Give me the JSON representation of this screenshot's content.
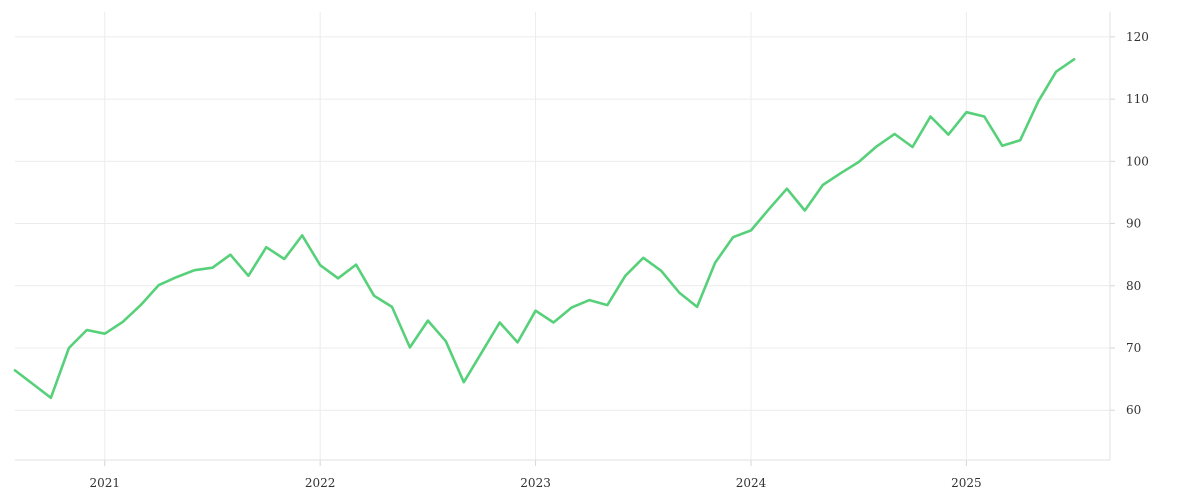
{
  "chart_data": {
    "type": "line",
    "title": "",
    "xlabel": "",
    "ylabel": "",
    "x_tick_labels": [
      "2021",
      "2022",
      "2023",
      "2024",
      "2025"
    ],
    "y_tick_labels": [
      "60",
      "70",
      "80",
      "90",
      "100",
      "110",
      "120"
    ],
    "xlim": [
      "2020-08",
      "2025-09"
    ],
    "ylim": [
      52,
      124
    ],
    "grid": true,
    "y_axis_position": "right",
    "line_color": "#57d07a",
    "series": [
      {
        "x": [
          "2020-08",
          "2020-09",
          "2020-10",
          "2020-11",
          "2020-12",
          "2021-01",
          "2021-02",
          "2021-03",
          "2021-04",
          "2021-05",
          "2021-06",
          "2021-07",
          "2021-08",
          "2021-09",
          "2021-10",
          "2021-11",
          "2021-12",
          "2022-01",
          "2022-02",
          "2022-03",
          "2022-04",
          "2022-05",
          "2022-06",
          "2022-07",
          "2022-08",
          "2022-09",
          "2022-10",
          "2022-11",
          "2022-12",
          "2023-01",
          "2023-02",
          "2023-03",
          "2023-04",
          "2023-05",
          "2023-06",
          "2023-07",
          "2023-08",
          "2023-09",
          "2023-10",
          "2023-11",
          "2023-12",
          "2024-01",
          "2024-02",
          "2024-03",
          "2024-04",
          "2024-05",
          "2024-06",
          "2024-07",
          "2024-08",
          "2024-09",
          "2024-10",
          "2024-11",
          "2024-12",
          "2025-01",
          "2025-02",
          "2025-03",
          "2025-04",
          "2025-05",
          "2025-06",
          "2025-07"
        ],
        "values": [
          66.4,
          64.2,
          62.0,
          70.0,
          72.9,
          72.3,
          74.2,
          76.9,
          80.1,
          81.4,
          82.5,
          82.9,
          85.0,
          81.6,
          86.2,
          84.3,
          88.1,
          83.3,
          81.2,
          83.4,
          78.4,
          76.6,
          70.1,
          74.4,
          71.1,
          64.5,
          69.3,
          74.1,
          70.9,
          76.0,
          74.1,
          76.5,
          77.7,
          76.9,
          81.6,
          84.5,
          82.4,
          78.9,
          76.6,
          83.7,
          87.8,
          88.9,
          92.3,
          95.6,
          92.1,
          96.2,
          98.1,
          99.9,
          102.4,
          104.4,
          102.3,
          107.2,
          104.3,
          107.9,
          107.2,
          102.5,
          103.4,
          109.6,
          114.4,
          116.4
        ]
      }
    ]
  }
}
